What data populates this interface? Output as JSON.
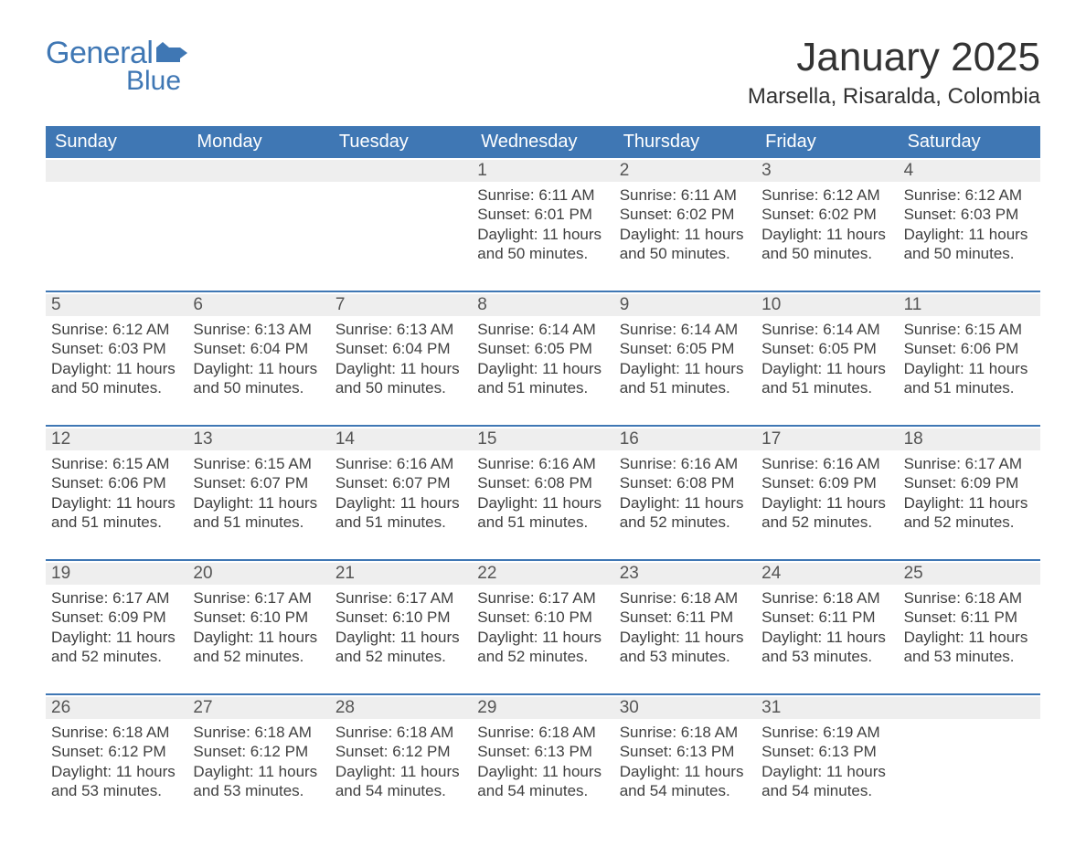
{
  "branding": {
    "logo_word1": "General",
    "logo_word2": "Blue",
    "logo_flag_color": "#3f77b4"
  },
  "calendar": {
    "month_title": "January 2025",
    "location": "Marsella, Risaralda, Colombia",
    "header_color": "#3f77b4",
    "header_text_color": "#ffffff",
    "daynum_bg": "#eeeeee",
    "text_color": "#404040",
    "day_names": [
      "Sunday",
      "Monday",
      "Tuesday",
      "Wednesday",
      "Thursday",
      "Friday",
      "Saturday"
    ],
    "weeks": [
      [
        null,
        null,
        null,
        {
          "n": "1",
          "sunrise": "6:11 AM",
          "sunset": "6:01 PM",
          "daylight": "11 hours and 50 minutes."
        },
        {
          "n": "2",
          "sunrise": "6:11 AM",
          "sunset": "6:02 PM",
          "daylight": "11 hours and 50 minutes."
        },
        {
          "n": "3",
          "sunrise": "6:12 AM",
          "sunset": "6:02 PM",
          "daylight": "11 hours and 50 minutes."
        },
        {
          "n": "4",
          "sunrise": "6:12 AM",
          "sunset": "6:03 PM",
          "daylight": "11 hours and 50 minutes."
        }
      ],
      [
        {
          "n": "5",
          "sunrise": "6:12 AM",
          "sunset": "6:03 PM",
          "daylight": "11 hours and 50 minutes."
        },
        {
          "n": "6",
          "sunrise": "6:13 AM",
          "sunset": "6:04 PM",
          "daylight": "11 hours and 50 minutes."
        },
        {
          "n": "7",
          "sunrise": "6:13 AM",
          "sunset": "6:04 PM",
          "daylight": "11 hours and 50 minutes."
        },
        {
          "n": "8",
          "sunrise": "6:14 AM",
          "sunset": "6:05 PM",
          "daylight": "11 hours and 51 minutes."
        },
        {
          "n": "9",
          "sunrise": "6:14 AM",
          "sunset": "6:05 PM",
          "daylight": "11 hours and 51 minutes."
        },
        {
          "n": "10",
          "sunrise": "6:14 AM",
          "sunset": "6:05 PM",
          "daylight": "11 hours and 51 minutes."
        },
        {
          "n": "11",
          "sunrise": "6:15 AM",
          "sunset": "6:06 PM",
          "daylight": "11 hours and 51 minutes."
        }
      ],
      [
        {
          "n": "12",
          "sunrise": "6:15 AM",
          "sunset": "6:06 PM",
          "daylight": "11 hours and 51 minutes."
        },
        {
          "n": "13",
          "sunrise": "6:15 AM",
          "sunset": "6:07 PM",
          "daylight": "11 hours and 51 minutes."
        },
        {
          "n": "14",
          "sunrise": "6:16 AM",
          "sunset": "6:07 PM",
          "daylight": "11 hours and 51 minutes."
        },
        {
          "n": "15",
          "sunrise": "6:16 AM",
          "sunset": "6:08 PM",
          "daylight": "11 hours and 51 minutes."
        },
        {
          "n": "16",
          "sunrise": "6:16 AM",
          "sunset": "6:08 PM",
          "daylight": "11 hours and 52 minutes."
        },
        {
          "n": "17",
          "sunrise": "6:16 AM",
          "sunset": "6:09 PM",
          "daylight": "11 hours and 52 minutes."
        },
        {
          "n": "18",
          "sunrise": "6:17 AM",
          "sunset": "6:09 PM",
          "daylight": "11 hours and 52 minutes."
        }
      ],
      [
        {
          "n": "19",
          "sunrise": "6:17 AM",
          "sunset": "6:09 PM",
          "daylight": "11 hours and 52 minutes."
        },
        {
          "n": "20",
          "sunrise": "6:17 AM",
          "sunset": "6:10 PM",
          "daylight": "11 hours and 52 minutes."
        },
        {
          "n": "21",
          "sunrise": "6:17 AM",
          "sunset": "6:10 PM",
          "daylight": "11 hours and 52 minutes."
        },
        {
          "n": "22",
          "sunrise": "6:17 AM",
          "sunset": "6:10 PM",
          "daylight": "11 hours and 52 minutes."
        },
        {
          "n": "23",
          "sunrise": "6:18 AM",
          "sunset": "6:11 PM",
          "daylight": "11 hours and 53 minutes."
        },
        {
          "n": "24",
          "sunrise": "6:18 AM",
          "sunset": "6:11 PM",
          "daylight": "11 hours and 53 minutes."
        },
        {
          "n": "25",
          "sunrise": "6:18 AM",
          "sunset": "6:11 PM",
          "daylight": "11 hours and 53 minutes."
        }
      ],
      [
        {
          "n": "26",
          "sunrise": "6:18 AM",
          "sunset": "6:12 PM",
          "daylight": "11 hours and 53 minutes."
        },
        {
          "n": "27",
          "sunrise": "6:18 AM",
          "sunset": "6:12 PM",
          "daylight": "11 hours and 53 minutes."
        },
        {
          "n": "28",
          "sunrise": "6:18 AM",
          "sunset": "6:12 PM",
          "daylight": "11 hours and 54 minutes."
        },
        {
          "n": "29",
          "sunrise": "6:18 AM",
          "sunset": "6:13 PM",
          "daylight": "11 hours and 54 minutes."
        },
        {
          "n": "30",
          "sunrise": "6:18 AM",
          "sunset": "6:13 PM",
          "daylight": "11 hours and 54 minutes."
        },
        {
          "n": "31",
          "sunrise": "6:19 AM",
          "sunset": "6:13 PM",
          "daylight": "11 hours and 54 minutes."
        },
        null
      ]
    ],
    "labels": {
      "sunrise": "Sunrise:",
      "sunset": "Sunset:",
      "daylight": "Daylight:"
    }
  }
}
